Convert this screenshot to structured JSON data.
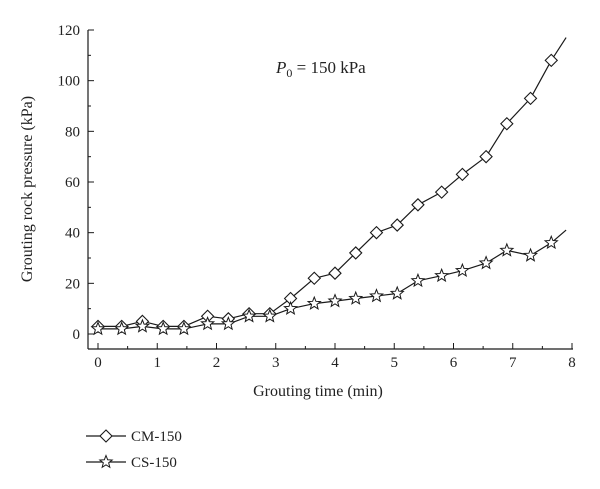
{
  "chart_data": {
    "type": "line",
    "title": "",
    "xlabel": "Grouting time (min)",
    "ylabel": "Grouting rock pressure (kPa)",
    "xlim": [
      0,
      8
    ],
    "ylim": [
      0,
      120
    ],
    "x_ticks": [
      "0",
      "1",
      "2",
      "3",
      "4",
      "5",
      "6",
      "7",
      "8"
    ],
    "y_ticks": [
      "0",
      "20",
      "40",
      "60",
      "80",
      "100",
      "120"
    ],
    "grid": false,
    "legend_placement": "bottom-left",
    "annotation": {
      "symbol": "P",
      "subscript": "0",
      "text": " = 150 kPa",
      "x": 3.0,
      "y": 104
    },
    "series": [
      {
        "name": "CM-150",
        "marker": "diamond",
        "x": [
          0,
          0.4,
          0.75,
          1.1,
          1.45,
          1.85,
          2.2,
          2.55,
          2.9,
          3.25,
          3.65,
          4.0,
          4.35,
          4.7,
          5.05,
          5.4,
          5.8,
          6.15,
          6.55,
          6.9,
          7.3,
          7.65,
          7.9
        ],
        "y": [
          3,
          3,
          5,
          3,
          3,
          7,
          6,
          8,
          8,
          14,
          22,
          24,
          32,
          40,
          43,
          51,
          56,
          63,
          70,
          83,
          93,
          108,
          117
        ]
      },
      {
        "name": "CS-150",
        "marker": "star",
        "x": [
          0,
          0.4,
          0.75,
          1.1,
          1.45,
          1.85,
          2.2,
          2.55,
          2.9,
          3.25,
          3.65,
          4.0,
          4.35,
          4.7,
          5.05,
          5.4,
          5.8,
          6.15,
          6.55,
          6.9,
          7.3,
          7.65,
          7.9
        ],
        "y": [
          2,
          2,
          3,
          2,
          2,
          4,
          4,
          7,
          7,
          10,
          12,
          13,
          14,
          15,
          16,
          21,
          23,
          25,
          28,
          33,
          31,
          36,
          41
        ]
      }
    ]
  },
  "colors": {
    "line": "#1a1a1a",
    "marker_fill": "#ffffff"
  }
}
